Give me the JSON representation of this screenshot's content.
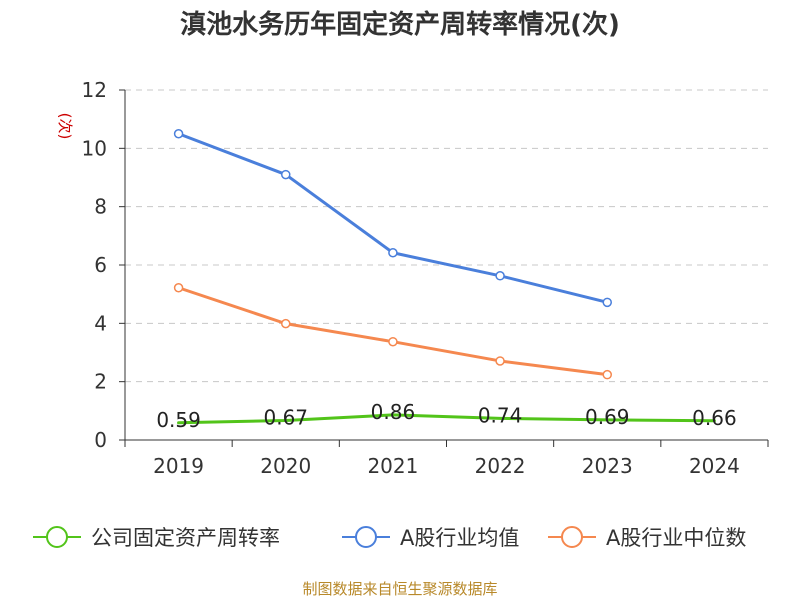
{
  "chart_data": {
    "type": "line",
    "title": "滇池水务历年固定资产周转率情况(次)",
    "ylabel": "(次)",
    "xlabel": "",
    "categories": [
      "2019",
      "2020",
      "2021",
      "2022",
      "2023",
      "2024"
    ],
    "ylim": [
      0,
      12
    ],
    "yticks": [
      0,
      2,
      4,
      6,
      8,
      10,
      12
    ],
    "grid": true,
    "legend_position": "bottom",
    "series": [
      {
        "name": "公司固定资产周转率",
        "color": "#52c41a",
        "values": [
          0.59,
          0.67,
          0.86,
          0.74,
          0.69,
          0.66
        ],
        "show_markers": false,
        "show_labels": true
      },
      {
        "name": "A股行业均值",
        "color": "#4a7fdb",
        "values": [
          10.5,
          9.1,
          6.42,
          5.63,
          4.72,
          null
        ],
        "show_markers": true,
        "show_labels": false
      },
      {
        "name": "A股行业中位数",
        "color": "#f5884f",
        "values": [
          5.22,
          3.99,
          3.37,
          2.71,
          2.24,
          null
        ],
        "show_markers": true,
        "show_labels": false
      }
    ],
    "source": "制图数据来自恒生聚源数据库"
  }
}
